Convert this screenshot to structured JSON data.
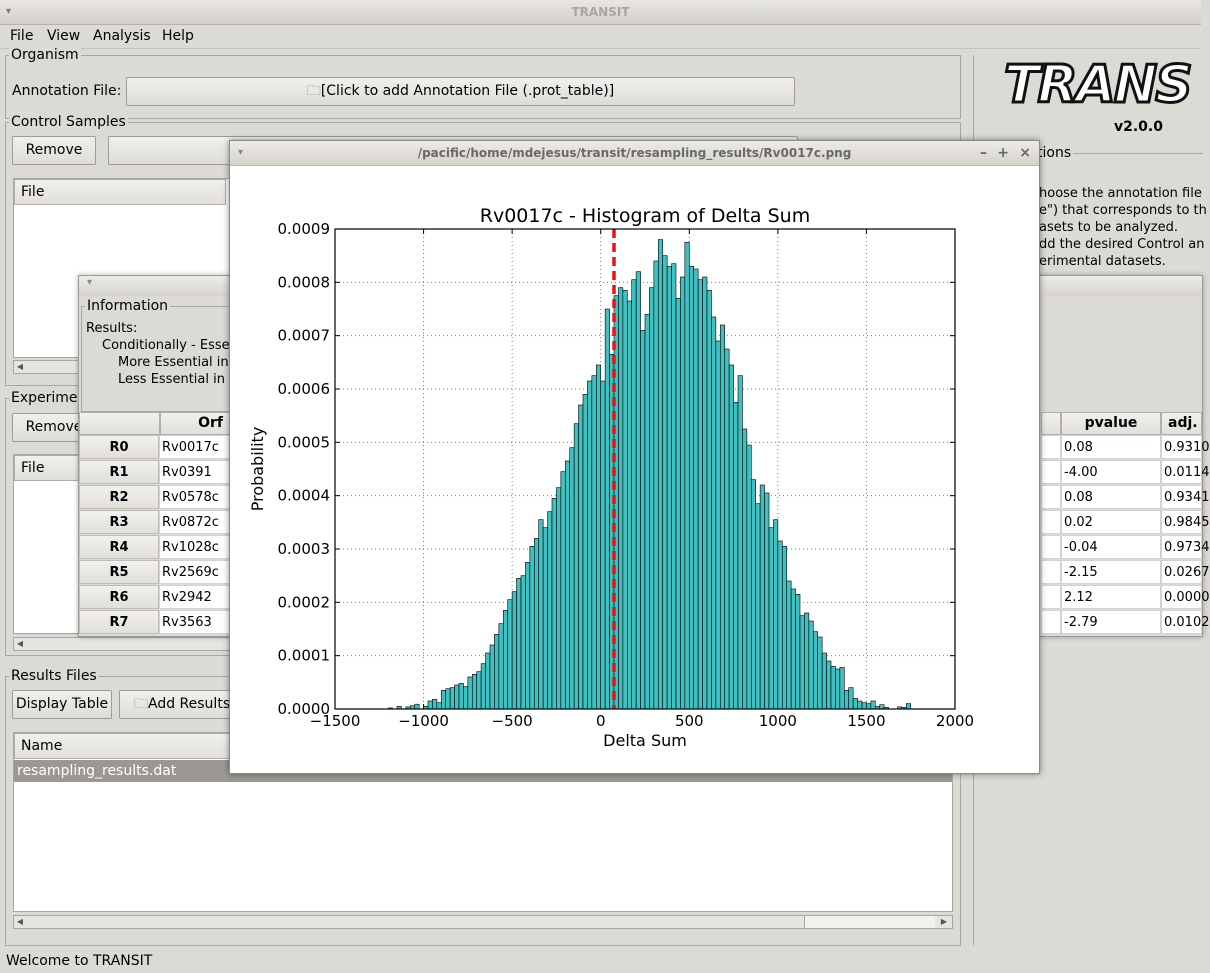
{
  "window": {
    "title": "TRANSIT"
  },
  "menu": [
    "File",
    "View",
    "Analysis",
    "Help"
  ],
  "organism": {
    "label": "Organism",
    "annotation_label": "Annotation File:",
    "annotation_button": "[Click to add Annotation File (.prot_table)]"
  },
  "control": {
    "label": "Control Samples",
    "remove": "Remove",
    "col_file": "File"
  },
  "experimental": {
    "label": "Experimer",
    "remove": "Remove",
    "col_file": "File"
  },
  "results_files": {
    "label": "Results Files",
    "display_table": "Display Table",
    "add_results": "Add Results",
    "col_name": "Name",
    "row": "resampling_results.dat"
  },
  "status": "Welcome to TRANSIT",
  "logo": {
    "text": "TRANS",
    "version": "v2.0.0"
  },
  "instructions": {
    "label": "tions",
    "lines": [
      "hoose the annotation file",
      "e\") that corresponds to th",
      "asets to be analyzed.",
      "dd the desired Control an",
      "erimental datasets."
    ]
  },
  "info": {
    "label": "Information",
    "results": "Results:",
    "conditionally": "Conditionally - Esse",
    "more": "More Essential in",
    "less": "Less Essential in"
  },
  "table": {
    "orf_header": "Orf",
    "pvalue_header": "pvalue",
    "adj_header": "adj.",
    "rows": [
      {
        "label": "R0",
        "orf": "Rv0017c",
        "pvalue": "0.08",
        "adj": "0.9310"
      },
      {
        "label": "R1",
        "orf": "Rv0391",
        "pvalue": "-4.00",
        "adj": "0.0114"
      },
      {
        "label": "R2",
        "orf": "Rv0578c",
        "pvalue": "0.08",
        "adj": "0.9341"
      },
      {
        "label": "R3",
        "orf": "Rv0872c",
        "pvalue": "0.02",
        "adj": "0.9845"
      },
      {
        "label": "R4",
        "orf": "Rv1028c",
        "pvalue": "-0.04",
        "adj": "0.9734"
      },
      {
        "label": "R5",
        "orf": "Rv2569c",
        "pvalue": "-2.15",
        "adj": "0.0267"
      },
      {
        "label": "R6",
        "orf": "Rv2942",
        "pvalue": "2.12",
        "adj": "0.0000"
      },
      {
        "label": "R7",
        "orf": "Rv3563",
        "pvalue": "-2.79",
        "adj": "0.0102"
      }
    ]
  },
  "image_window": {
    "title": "/pacific/home/mdejesus/transit/resampling_results/Rv0017c.png"
  },
  "chart_data": {
    "type": "bar",
    "title": "Rv0017c - Histogram of Delta Sum",
    "xlabel": "Delta Sum",
    "ylabel": "Probability",
    "xlim": [
      -1500,
      2000
    ],
    "ylim": [
      0,
      0.0009
    ],
    "xticks": [
      "−1500",
      "−1000",
      "−500",
      "0",
      "500",
      "1000",
      "1500",
      "2000"
    ],
    "yticks": [
      "0.0000",
      "0.0001",
      "0.0002",
      "0.0003",
      "0.0004",
      "0.0005",
      "0.0006",
      "0.0007",
      "0.0008",
      "0.0009"
    ],
    "grid": true,
    "bar_color": "#40c0c0",
    "marker_line": {
      "x": 75,
      "color": "#ee1111",
      "style": "dashed"
    },
    "bin_start": -1200,
    "bin_width": 25,
    "values": [
      2e-06,
      0,
      5e-06,
      0,
      4e-06,
      6e-06,
      9e-06,
      0,
      5e-06,
      1.5e-05,
      1.8e-05,
      1.2e-05,
      3.5e-05,
      3.8e-05,
      4e-05,
      4.5e-05,
      4.8e-05,
      4.2e-05,
      6e-05,
      6.5e-05,
      7e-05,
      8.5e-05,
      0.000105,
      0.00012,
      0.00014,
      0.00016,
      0.000185,
      0.000205,
      0.00022,
      0.000245,
      0.00025,
      0.000275,
      0.000305,
      0.00032,
      0.000355,
      0.00034,
      0.00037,
      0.000395,
      0.000415,
      0.000445,
      0.000465,
      0.00049,
      0.000535,
      0.00057,
      0.00059,
      0.000615,
      0.000625,
      0.000645,
      0.000615,
      0.00075,
      0.000665,
      0.000775,
      0.00079,
      0.000785,
      0.000765,
      0.000805,
      0.00082,
      0.00071,
      0.00074,
      0.00079,
      0.00084,
      0.00088,
      0.00085,
      0.00083,
      0.000835,
      0.00077,
      0.00081,
      0.000875,
      0.00083,
      0.000825,
      0.000805,
      0.00081,
      0.000785,
      0.000735,
      0.00069,
      0.00072,
      0.000675,
      0.000645,
      0.000575,
      0.000625,
      0.000525,
      0.000495,
      0.00043,
      0.000385,
      0.00042,
      0.000405,
      0.00034,
      0.000355,
      0.000315,
      0.000305,
      0.00024,
      0.000225,
      0.000215,
      0.000175,
      0.00018,
      0.000165,
      0.000145,
      0.000135,
      0.000105,
      9e-05,
      8e-05,
      7.5e-05,
      7.8e-05,
      3.5e-05,
      4e-05,
      2e-05,
      1.5e-05,
      1.2e-05,
      1e-05,
      1.5e-05,
      5e-06,
      8e-06,
      3e-06,
      0,
      0,
      4e-06,
      3e-06,
      1e-05
    ]
  }
}
